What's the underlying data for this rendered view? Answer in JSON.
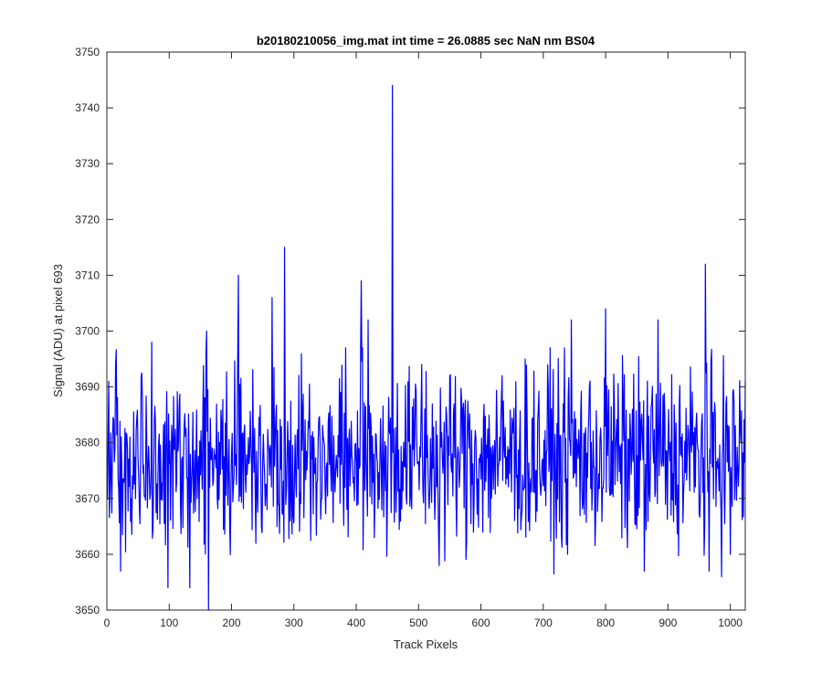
{
  "chart_data": {
    "type": "line",
    "title": "b20180210056_img.mat int time = 26.0885 sec  NaN nm BS04",
    "xlabel": "Track Pixels",
    "ylabel": "Signal (ADU) at pixel 693",
    "xlim": [
      0,
      1024
    ],
    "ylim": [
      3650,
      3750
    ],
    "xticks": [
      "0",
      "100",
      "200",
      "300",
      "400",
      "500",
      "600",
      "700",
      "800",
      "900",
      "1000"
    ],
    "yticks": [
      "3650",
      "3660",
      "3670",
      "3680",
      "3690",
      "3700",
      "3710",
      "3720",
      "3730",
      "3740",
      "3750"
    ],
    "grid": false,
    "series": [
      {
        "color": "#0000ff",
        "x_start": 1,
        "x_step": 1,
        "length": 1024,
        "values_note": "noisy signal around 3677 ADU; key peaks listed in features",
        "features": [
          {
            "x": 3,
            "y": 3691
          },
          {
            "x": 14,
            "y": 3694
          },
          {
            "x": 22,
            "y": 3657
          },
          {
            "x": 72,
            "y": 3698
          },
          {
            "x": 98,
            "y": 3654
          },
          {
            "x": 133,
            "y": 3654
          },
          {
            "x": 160,
            "y": 3700
          },
          {
            "x": 163,
            "y": 3650
          },
          {
            "x": 211,
            "y": 3710
          },
          {
            "x": 265,
            "y": 3706
          },
          {
            "x": 285,
            "y": 3715
          },
          {
            "x": 408,
            "y": 3709
          },
          {
            "x": 419,
            "y": 3702
          },
          {
            "x": 458,
            "y": 3744
          },
          {
            "x": 505,
            "y": 3694
          },
          {
            "x": 533,
            "y": 3658
          },
          {
            "x": 745,
            "y": 3702
          },
          {
            "x": 800,
            "y": 3704
          },
          {
            "x": 862,
            "y": 3657
          },
          {
            "x": 884,
            "y": 3702
          },
          {
            "x": 960,
            "y": 3712
          },
          {
            "x": 966,
            "y": 3657
          },
          {
            "x": 1000,
            "y": 3660
          }
        ]
      }
    ]
  }
}
